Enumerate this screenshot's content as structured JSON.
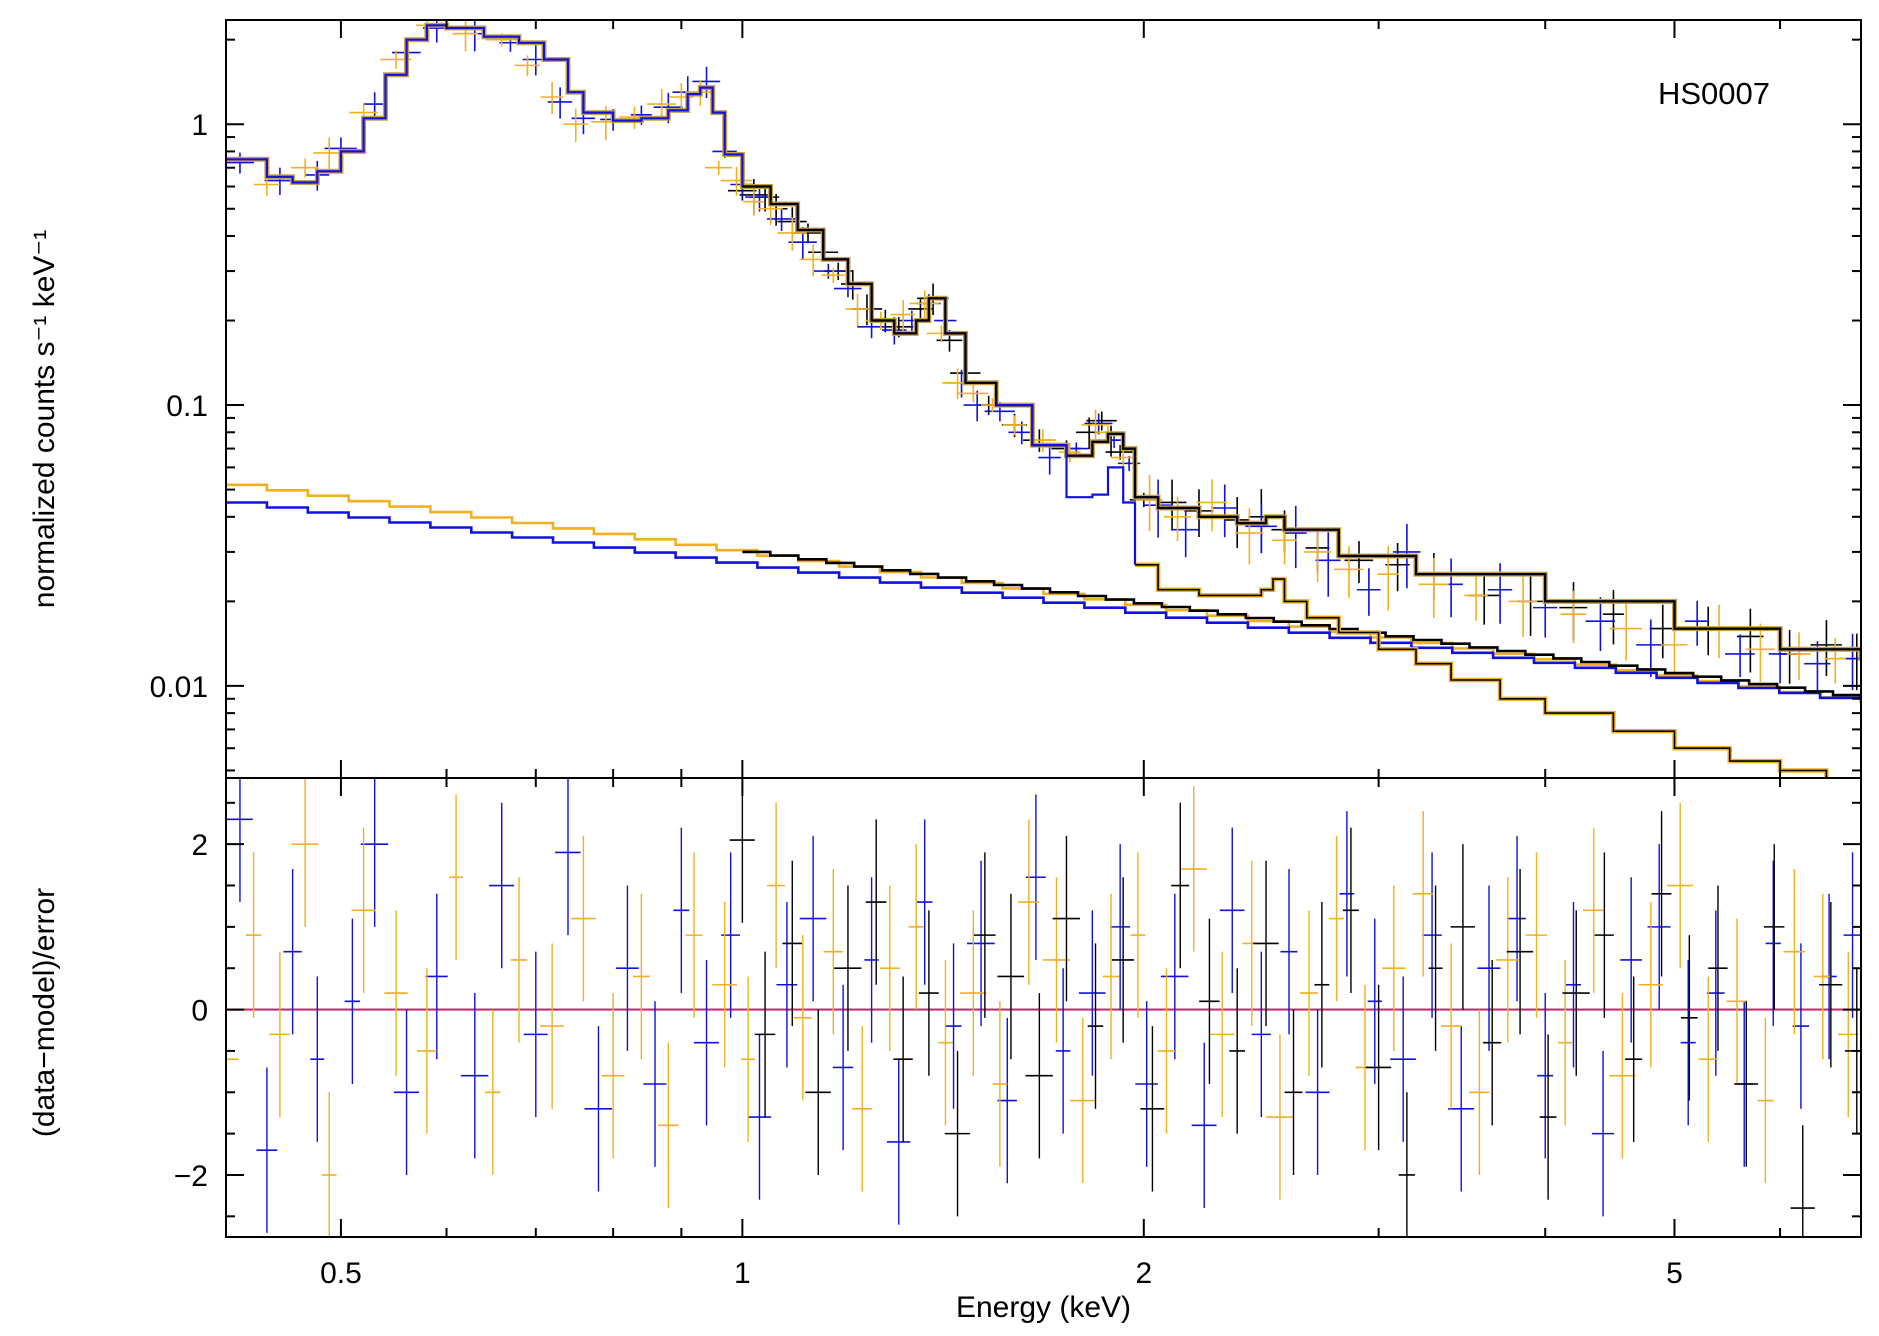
{
  "chart_data": [
    {
      "type": "line",
      "panel": "spectrum",
      "title": "",
      "annotation": "HS0007",
      "xlabel": "",
      "ylabel": "normalized counts s⁻¹ keV⁻¹",
      "xscale": "log",
      "yscale": "log",
      "xlim": [
        0.41,
        6.9
      ],
      "ylim": [
        0.0047,
        2.35
      ],
      "yticks": [
        {
          "value": 1,
          "label": "1"
        },
        {
          "value": 0.1,
          "label": "0.1"
        },
        {
          "value": 0.01,
          "label": "0.01"
        }
      ],
      "colors": {
        "black": "#000000",
        "blue": "#1010e0",
        "orange": "#f0b020",
        "tan": "#c8a040"
      },
      "model_total_shape": [
        [
          0.41,
          0.75
        ],
        [
          0.44,
          0.65
        ],
        [
          0.46,
          0.62
        ],
        [
          0.48,
          0.68
        ],
        [
          0.5,
          0.8
        ],
        [
          0.52,
          1.05
        ],
        [
          0.54,
          1.5
        ],
        [
          0.56,
          2.0
        ],
        [
          0.58,
          2.25
        ],
        [
          0.6,
          2.2
        ],
        [
          0.64,
          2.05
        ],
        [
          0.68,
          1.95
        ],
        [
          0.71,
          1.7
        ],
        [
          0.74,
          1.3
        ],
        [
          0.76,
          1.1
        ],
        [
          0.8,
          1.03
        ],
        [
          0.84,
          1.05
        ],
        [
          0.88,
          1.12
        ],
        [
          0.91,
          1.28
        ],
        [
          0.93,
          1.35
        ],
        [
          0.95,
          1.1
        ],
        [
          0.97,
          0.78
        ],
        [
          1.0,
          0.6
        ],
        [
          1.05,
          0.52
        ],
        [
          1.1,
          0.42
        ],
        [
          1.15,
          0.33
        ],
        [
          1.2,
          0.27
        ],
        [
          1.25,
          0.2
        ],
        [
          1.3,
          0.18
        ],
        [
          1.35,
          0.2
        ],
        [
          1.38,
          0.24
        ],
        [
          1.42,
          0.18
        ],
        [
          1.47,
          0.12
        ],
        [
          1.55,
          0.1
        ],
        [
          1.65,
          0.072
        ],
        [
          1.75,
          0.066
        ],
        [
          1.83,
          0.074
        ],
        [
          1.88,
          0.079
        ],
        [
          1.93,
          0.07
        ],
        [
          1.97,
          0.047
        ],
        [
          2.05,
          0.043
        ],
        [
          2.2,
          0.04
        ],
        [
          2.35,
          0.038
        ],
        [
          2.47,
          0.04
        ],
        [
          2.55,
          0.036
        ],
        [
          2.8,
          0.029
        ],
        [
          3.2,
          0.025
        ],
        [
          4.0,
          0.02
        ],
        [
          5.0,
          0.016
        ],
        [
          6.0,
          0.0135
        ],
        [
          6.9,
          0.0123
        ]
      ],
      "series": [
        {
          "name": "",
          "color": "black",
          "role": "data",
          "x": [
            1.0,
            1.02,
            1.04,
            1.06,
            1.09,
            1.12,
            1.15,
            1.18,
            1.21,
            1.24,
            1.28,
            1.31,
            1.36,
            1.39,
            1.43,
            1.47,
            1.53,
            1.6,
            1.67,
            1.75,
            1.82,
            1.86,
            1.89,
            1.92,
            2.0,
            2.1,
            2.2,
            2.35,
            2.45,
            2.55,
            2.7,
            2.9,
            3.1,
            3.3,
            3.6,
            3.9,
            4.2,
            4.5,
            4.9,
            5.3,
            5.7,
            6.1,
            6.5,
            6.85
          ],
          "y": [
            0.58,
            0.56,
            0.55,
            0.5,
            0.45,
            0.41,
            0.35,
            0.3,
            0.27,
            0.22,
            0.2,
            0.19,
            0.22,
            0.24,
            0.17,
            0.13,
            0.1,
            0.085,
            0.075,
            0.07,
            0.08,
            0.088,
            0.075,
            0.068,
            0.046,
            0.045,
            0.042,
            0.039,
            0.04,
            0.036,
            0.031,
            0.028,
            0.027,
            0.025,
            0.021,
            0.02,
            0.019,
            0.018,
            0.016,
            0.016,
            0.015,
            0.013,
            0.014,
            0.0125
          ]
        },
        {
          "name": "",
          "color": "blue",
          "role": "data",
          "x": [
            0.42,
            0.45,
            0.48,
            0.5,
            0.53,
            0.56,
            0.59,
            0.63,
            0.67,
            0.7,
            0.73,
            0.76,
            0.8,
            0.84,
            0.88,
            0.91,
            0.94,
            0.97,
            1.0,
            1.03,
            1.07,
            1.11,
            1.16,
            1.2,
            1.25,
            1.3,
            1.34,
            1.38,
            1.42,
            1.46,
            1.5,
            1.56,
            1.62,
            1.7,
            1.78,
            1.85,
            1.9,
            1.95,
            2.05,
            2.15,
            2.3,
            2.45,
            2.6,
            2.75,
            2.95,
            3.15,
            3.4,
            3.7,
            4.0,
            4.4,
            4.8,
            5.2,
            5.6,
            6.0,
            6.4,
            6.8
          ],
          "y": [
            0.73,
            0.63,
            0.66,
            0.82,
            1.18,
            1.8,
            2.2,
            2.1,
            1.95,
            1.7,
            1.2,
            1.05,
            1.04,
            1.08,
            1.15,
            1.3,
            1.42,
            0.8,
            0.61,
            0.55,
            0.46,
            0.38,
            0.3,
            0.26,
            0.19,
            0.185,
            0.2,
            0.23,
            0.2,
            0.12,
            0.1,
            0.095,
            0.08,
            0.065,
            0.07,
            0.086,
            0.075,
            0.062,
            0.044,
            0.036,
            0.043,
            0.037,
            0.035,
            0.028,
            0.022,
            0.03,
            0.023,
            0.022,
            0.019,
            0.017,
            0.014,
            0.017,
            0.013,
            0.013,
            0.012,
            0.0125
          ]
        },
        {
          "name": "",
          "color": "orange",
          "role": "data",
          "x": [
            0.41,
            0.44,
            0.47,
            0.49,
            0.52,
            0.55,
            0.58,
            0.62,
            0.66,
            0.69,
            0.72,
            0.75,
            0.79,
            0.83,
            0.87,
            0.9,
            0.93,
            0.96,
            0.99,
            1.02,
            1.05,
            1.09,
            1.13,
            1.17,
            1.22,
            1.27,
            1.32,
            1.37,
            1.41,
            1.45,
            1.49,
            1.54,
            1.6,
            1.68,
            1.76,
            1.84,
            1.88,
            1.93,
            2.02,
            2.12,
            2.25,
            2.4,
            2.55,
            2.7,
            2.85,
            3.05,
            3.3,
            3.55,
            3.85,
            4.2,
            4.6,
            5.0,
            5.4,
            5.8,
            6.2,
            6.6
          ],
          "y": [
            0.74,
            0.61,
            0.7,
            0.79,
            1.1,
            1.7,
            2.25,
            2.1,
            2.0,
            1.62,
            1.25,
            1.0,
            1.02,
            1.06,
            1.18,
            1.25,
            1.3,
            0.7,
            0.63,
            0.53,
            0.5,
            0.41,
            0.33,
            0.29,
            0.22,
            0.2,
            0.21,
            0.23,
            0.18,
            0.12,
            0.11,
            0.1,
            0.085,
            0.075,
            0.068,
            0.085,
            0.08,
            0.065,
            0.046,
            0.04,
            0.045,
            0.035,
            0.033,
            0.03,
            0.026,
            0.025,
            0.023,
            0.021,
            0.02,
            0.018,
            0.016,
            0.014,
            0.016,
            0.0135,
            0.013,
            0.0125
          ]
        },
        {
          "name": "",
          "color": "tan",
          "role": "model_total",
          "x": [],
          "y": []
        },
        {
          "name": "",
          "color": "blue",
          "role": "model_total",
          "x": [],
          "y": []
        },
        {
          "name": "",
          "color": "black",
          "role": "model_total",
          "x": [],
          "y": []
        },
        {
          "name": "",
          "color": "orange",
          "role": "powerlaw",
          "x": [
            0.41,
            6.9
          ],
          "y": [
            0.052,
            0.0087
          ]
        },
        {
          "name": "",
          "color": "blue",
          "role": "powerlaw",
          "x": [
            0.41,
            6.9
          ],
          "y": [
            0.045,
            0.0087
          ]
        },
        {
          "name": "",
          "color": "black",
          "role": "powerlaw",
          "x": [
            1.0,
            6.9
          ],
          "y": [
            0.03,
            0.009
          ]
        },
        {
          "name": "",
          "color": "black",
          "role": "thermal",
          "x": [
            1.97,
            2.05,
            2.2,
            2.35,
            2.45,
            2.5,
            2.55,
            2.65,
            2.8,
            3.0,
            3.2,
            3.4,
            3.7,
            4.0,
            4.5,
            5.0,
            5.5,
            6.0,
            6.5,
            6.9
          ],
          "y": [
            0.027,
            0.022,
            0.021,
            0.021,
            0.022,
            0.024,
            0.02,
            0.0175,
            0.0155,
            0.0135,
            0.012,
            0.0105,
            0.009,
            0.008,
            0.0069,
            0.006,
            0.0054,
            0.005,
            0.0046,
            0.0044
          ]
        }
      ]
    },
    {
      "type": "scatter",
      "panel": "residuals",
      "title": "",
      "xlabel": "Energy (keV)",
      "ylabel": "(data−model)/error",
      "xscale": "log",
      "xlim": [
        0.41,
        6.9
      ],
      "ylim": [
        -2.75,
        2.8
      ],
      "xticks": [
        {
          "value": 0.5,
          "label": "0.5"
        },
        {
          "value": 1,
          "label": "1"
        },
        {
          "value": 2,
          "label": "2"
        },
        {
          "value": 5,
          "label": "5"
        }
      ],
      "yticks": [
        {
          "value": 2,
          "label": "2"
        },
        {
          "value": 0,
          "label": "0"
        },
        {
          "value": -2,
          "label": "−2"
        }
      ],
      "zero_line_color": "#c0306a",
      "series": [
        {
          "name": "",
          "color": "blue",
          "x": [
            0.42,
            0.44,
            0.46,
            0.48,
            0.51,
            0.53,
            0.56,
            0.59,
            0.63,
            0.66,
            0.7,
            0.74,
            0.78,
            0.82,
            0.86,
            0.9,
            0.94,
            0.98,
            1.03,
            1.08,
            1.13,
            1.19,
            1.25,
            1.31,
            1.37,
            1.44,
            1.51,
            1.58,
            1.66,
            1.74,
            1.83,
            1.92,
            2.01,
            2.11,
            2.22,
            2.33,
            2.45,
            2.57,
            2.7,
            2.84,
            2.98,
            3.13,
            3.29,
            3.46,
            3.63,
            3.81,
            4.0,
            4.2,
            4.42,
            4.64,
            4.87,
            5.12,
            5.37,
            5.64,
            5.93,
            6.22,
            6.53,
            6.8
          ],
          "y": [
            2.3,
            -1.7,
            0.7,
            -0.6,
            0.1,
            2.0,
            -1.0,
            0.4,
            -0.8,
            1.5,
            -0.3,
            1.9,
            -1.2,
            0.5,
            -0.9,
            1.2,
            -0.4,
            0.9,
            -1.3,
            0.3,
            1.1,
            -0.7,
            0.6,
            -1.6,
            1.3,
            -0.2,
            0.8,
            -1.1,
            1.6,
            -0.5,
            0.2,
            1.0,
            -0.9,
            0.4,
            -1.4,
            1.2,
            -0.3,
            0.7,
            -1.0,
            1.4,
            0.1,
            -0.6,
            0.9,
            -1.2,
            0.5,
            1.1,
            -0.8,
            0.3,
            -1.5,
            0.6,
            1.0,
            -0.4,
            0.2,
            -0.9,
            0.8,
            -0.2,
            0.4,
            0.9
          ]
        },
        {
          "name": "",
          "color": "orange",
          "x": [
            0.41,
            0.43,
            0.45,
            0.47,
            0.49,
            0.52,
            0.55,
            0.58,
            0.61,
            0.65,
            0.68,
            0.72,
            0.76,
            0.8,
            0.84,
            0.88,
            0.92,
            0.97,
            1.01,
            1.06,
            1.11,
            1.17,
            1.23,
            1.29,
            1.35,
            1.42,
            1.49,
            1.56,
            1.64,
            1.72,
            1.8,
            1.89,
            1.98,
            2.08,
            2.18,
            2.29,
            2.41,
            2.53,
            2.66,
            2.79,
            2.93,
            3.08,
            3.24,
            3.4,
            3.57,
            3.75,
            3.94,
            4.14,
            4.35,
            4.57,
            4.8,
            5.05,
            5.3,
            5.57,
            5.85,
            6.15,
            6.46,
            6.75
          ],
          "y": [
            -0.6,
            0.9,
            -0.3,
            2.0,
            -2.0,
            1.2,
            0.2,
            -0.5,
            1.6,
            -1.0,
            0.6,
            -0.2,
            1.1,
            -0.8,
            0.4,
            -1.4,
            0.9,
            0.3,
            -0.6,
            1.5,
            -0.1,
            0.7,
            -1.2,
            0.5,
            1.0,
            -0.4,
            0.2,
            -0.9,
            1.3,
            0.6,
            -1.1,
            0.4,
            0.9,
            -0.5,
            1.7,
            -0.3,
            0.8,
            -1.3,
            0.2,
            1.1,
            -0.7,
            0.5,
            1.4,
            -0.2,
            -1.0,
            0.6,
            0.9,
            -0.4,
            1.2,
            -0.8,
            0.3,
            1.5,
            -0.6,
            0.1,
            -1.1,
            0.7,
            0.4,
            -0.3
          ]
        },
        {
          "name": "",
          "color": "black",
          "x": [
            1.0,
            1.04,
            1.09,
            1.14,
            1.2,
            1.26,
            1.32,
            1.38,
            1.45,
            1.52,
            1.59,
            1.67,
            1.75,
            1.84,
            1.93,
            2.03,
            2.13,
            2.24,
            2.35,
            2.47,
            2.59,
            2.72,
            2.86,
            3.0,
            3.15,
            3.31,
            3.47,
            3.65,
            3.83,
            4.02,
            4.22,
            4.43,
            4.66,
            4.89,
            5.13,
            5.39,
            5.66,
            5.94,
            6.24,
            6.55,
            6.85
          ],
          "y": [
            2.05,
            -0.3,
            0.8,
            -1.0,
            0.5,
            1.3,
            -0.6,
            0.2,
            -1.5,
            0.9,
            0.4,
            -0.8,
            1.1,
            -0.2,
            0.6,
            -1.2,
            1.5,
            0.1,
            -0.5,
            0.8,
            -1.0,
            0.3,
            1.2,
            -0.7,
            -2.0,
            0.5,
            1.0,
            -0.4,
            0.7,
            -1.3,
            0.2,
            0.9,
            -0.6,
            1.4,
            -0.1,
            0.5,
            -0.9,
            1.0,
            -2.4,
            0.3,
            -0.5
          ]
        }
      ]
    }
  ]
}
